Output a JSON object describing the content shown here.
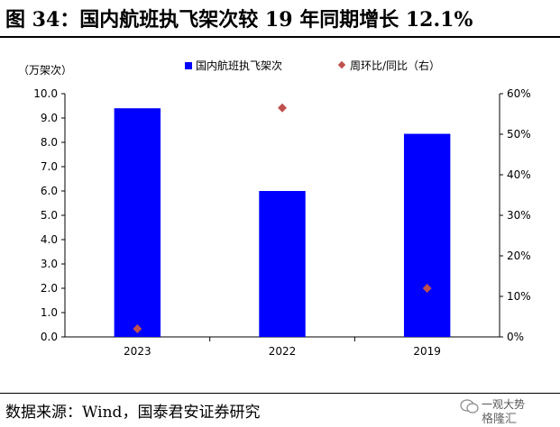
{
  "title": "图 34：国内航班执飞架次较 19 年同期增长 12.1%",
  "source": "数据来源：Wind，国泰君安证券研究",
  "watermark": {
    "line1": "一观大势",
    "line2": "格隆汇"
  },
  "chart_data": {
    "type": "bar",
    "categories": [
      "2023",
      "2022",
      "2019"
    ],
    "series": [
      {
        "name": "国内航班执飞架次",
        "kind": "bar",
        "axis": "left",
        "color": "#0000ff",
        "values": [
          9.4,
          6.0,
          8.35
        ]
      },
      {
        "name": "周环比/同比（右）",
        "kind": "scatter",
        "axis": "right",
        "color": "#c0504d",
        "values": [
          2,
          56.5,
          12
        ]
      }
    ],
    "ylabel": "（万架次）",
    "ylim": [
      0,
      10
    ],
    "y_ticks": [
      "0.0",
      "1.0",
      "2.0",
      "3.0",
      "4.0",
      "5.0",
      "6.0",
      "7.0",
      "8.0",
      "9.0",
      "10.0"
    ],
    "y2lim": [
      0,
      60
    ],
    "y2_ticks": [
      "0%",
      "10%",
      "20%",
      "30%",
      "40%",
      "50%",
      "60%"
    ],
    "legend_position": "top",
    "grid": false
  }
}
